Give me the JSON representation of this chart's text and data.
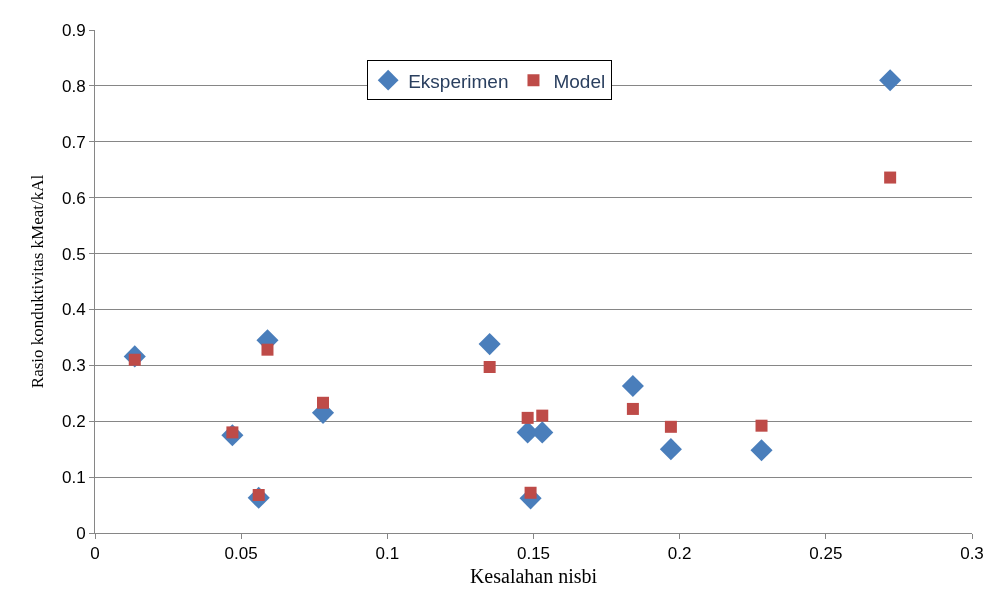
{
  "chart_data": {
    "type": "scatter",
    "xlabel": "Kesalahan nisbi",
    "ylabel": "Rasio konduktivitas kMeat/kAl",
    "xlim": [
      0,
      0.3
    ],
    "xticks": [
      0,
      0.05,
      0.1,
      0.15,
      0.2,
      0.25,
      0.3
    ],
    "ylim": [
      0,
      0.9
    ],
    "yticks": [
      0,
      0.1,
      0.2,
      0.3,
      0.4,
      0.5,
      0.6,
      0.7,
      0.8,
      0.9
    ],
    "grid": "y",
    "legend": "top",
    "series": [
      {
        "name": "Eksperimen",
        "color": "#4a7ebb",
        "marker": "diamond",
        "x": [
          0.0136,
          0.047,
          0.056,
          0.059,
          0.078,
          0.135,
          0.148,
          0.149,
          0.153,
          0.184,
          0.197,
          0.228,
          0.272
        ],
        "values": [
          0.316,
          0.175,
          0.063,
          0.345,
          0.215,
          0.338,
          0.18,
          0.062,
          0.18,
          0.263,
          0.15,
          0.148,
          0.81
        ]
      },
      {
        "name": "Model",
        "color": "#be4b48",
        "marker": "square",
        "x": [
          0.0136,
          0.047,
          0.056,
          0.059,
          0.078,
          0.135,
          0.148,
          0.149,
          0.153,
          0.184,
          0.197,
          0.228,
          0.272
        ],
        "values": [
          0.31,
          0.18,
          0.068,
          0.328,
          0.233,
          0.297,
          0.206,
          0.072,
          0.21,
          0.222,
          0.19,
          0.192,
          0.636
        ]
      }
    ]
  }
}
